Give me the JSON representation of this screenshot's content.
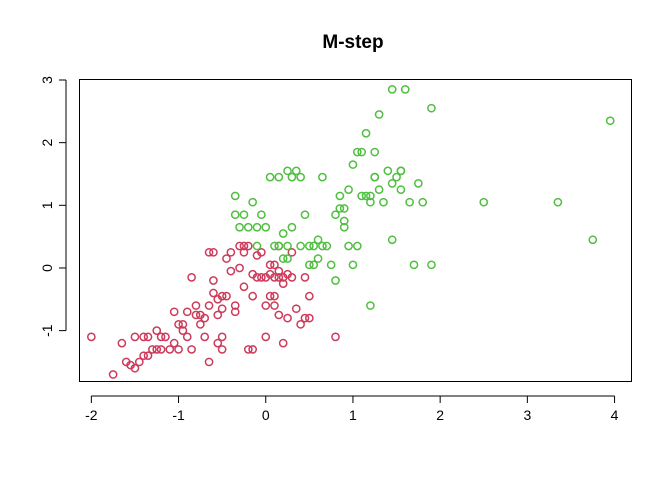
{
  "chart_data": {
    "type": "scatter",
    "title": "M-step",
    "xlabel": "",
    "ylabel": "",
    "xlim": [
      -2.13,
      4.2
    ],
    "ylim": [
      -1.82,
      3.0
    ],
    "x_ticks": [
      -2,
      -1,
      0,
      1,
      2,
      3,
      4
    ],
    "y_ticks": [
      -1,
      0,
      1,
      2,
      3
    ],
    "x_tick_labels": [
      "-2",
      "-1",
      "0",
      "1",
      "2",
      "3",
      "4"
    ],
    "y_tick_labels": [
      "-1",
      "0",
      "1",
      "2",
      "3"
    ],
    "grid": false,
    "legend": "none",
    "series": [
      {
        "color": "#cd3a5a",
        "points": [
          [
            -2.0,
            -1.1
          ],
          [
            -1.75,
            -1.7
          ],
          [
            -1.65,
            -1.2
          ],
          [
            -1.6,
            -1.5
          ],
          [
            -1.55,
            -1.55
          ],
          [
            -1.5,
            -1.1
          ],
          [
            -1.5,
            -1.6
          ],
          [
            -1.45,
            -1.5
          ],
          [
            -1.4,
            -1.1
          ],
          [
            -1.4,
            -1.4
          ],
          [
            -1.35,
            -1.1
          ],
          [
            -1.35,
            -1.4
          ],
          [
            -1.3,
            -1.3
          ],
          [
            -1.25,
            -1.3
          ],
          [
            -1.2,
            -1.3
          ],
          [
            -1.2,
            -1.1
          ],
          [
            -1.15,
            -1.1
          ],
          [
            -1.1,
            -1.3
          ],
          [
            -1.05,
            -0.7
          ],
          [
            -1.0,
            -0.9
          ],
          [
            -1.0,
            -1.3
          ],
          [
            -0.95,
            -0.9
          ],
          [
            -0.9,
            -1.1
          ],
          [
            -0.85,
            -1.3
          ],
          [
            -0.85,
            -0.15
          ],
          [
            -0.8,
            -0.75
          ],
          [
            -0.8,
            -0.6
          ],
          [
            -0.75,
            -0.75
          ],
          [
            -0.7,
            -1.1
          ],
          [
            -0.7,
            -0.8
          ],
          [
            -0.65,
            -1.5
          ],
          [
            -0.65,
            -0.6
          ],
          [
            -0.6,
            -0.4
          ],
          [
            -0.55,
            -0.5
          ],
          [
            -0.55,
            -1.2
          ],
          [
            -0.5,
            -1.3
          ],
          [
            -0.5,
            -1.1
          ],
          [
            -0.5,
            -0.65
          ],
          [
            -0.5,
            -0.45
          ],
          [
            -0.45,
            -0.45
          ],
          [
            -0.4,
            0.25
          ],
          [
            -0.4,
            -0.05
          ],
          [
            -0.35,
            -0.6
          ],
          [
            -0.3,
            0.0
          ],
          [
            -0.25,
            0.25
          ],
          [
            -0.25,
            -0.3
          ],
          [
            -0.2,
            -1.3
          ],
          [
            -0.15,
            -0.45
          ],
          [
            -0.1,
            0.2
          ],
          [
            -0.05,
            0.25
          ],
          [
            0.0,
            -0.6
          ],
          [
            0.05,
            -0.1
          ],
          [
            0.1,
            0.05
          ],
          [
            0.1,
            -0.45
          ],
          [
            0.15,
            0.35
          ],
          [
            0.2,
            -0.15
          ],
          [
            0.25,
            -0.1
          ],
          [
            -0.6,
            -0.2
          ],
          [
            -0.6,
            0.25
          ],
          [
            -0.55,
            -0.75
          ],
          [
            -0.25,
            0.35
          ],
          [
            -0.2,
            0.35
          ],
          [
            -0.15,
            -0.1
          ],
          [
            -0.1,
            -0.15
          ],
          [
            0.0,
            -1.1
          ],
          [
            0.05,
            -0.45
          ],
          [
            0.1,
            -0.6
          ],
          [
            0.15,
            -0.15
          ],
          [
            0.2,
            -0.25
          ],
          [
            0.25,
            -0.8
          ],
          [
            0.3,
            -0.15
          ],
          [
            0.35,
            -0.65
          ],
          [
            0.4,
            -0.9
          ],
          [
            0.45,
            -0.8
          ],
          [
            0.5,
            -0.8
          ],
          [
            0.8,
            -1.1
          ],
          [
            0.5,
            -0.45
          ],
          [
            0.3,
            0.25
          ],
          [
            -0.3,
            0.35
          ],
          [
            0.15,
            -0.75
          ],
          [
            -0.9,
            -0.7
          ],
          [
            -0.75,
            -0.9
          ],
          [
            -1.05,
            -1.2
          ],
          [
            -0.65,
            0.25
          ],
          [
            -0.45,
            0.15
          ],
          [
            -0.35,
            -0.7
          ],
          [
            -0.15,
            -1.3
          ],
          [
            0.2,
            -1.2
          ],
          [
            -1.25,
            -1.0
          ],
          [
            -0.95,
            -1.0
          ],
          [
            0.45,
            -0.15
          ],
          [
            0.0,
            -0.15
          ],
          [
            0.05,
            0.05
          ],
          [
            0.1,
            -0.15
          ],
          [
            -0.05,
            -0.15
          ],
          [
            0.15,
            -0.05
          ]
        ]
      },
      {
        "color": "#4fbf3f",
        "points": [
          [
            -0.35,
            1.15
          ],
          [
            -0.35,
            0.85
          ],
          [
            -0.3,
            0.65
          ],
          [
            -0.25,
            0.85
          ],
          [
            -0.2,
            0.65
          ],
          [
            -0.15,
            1.05
          ],
          [
            -0.1,
            0.65
          ],
          [
            -0.05,
            0.85
          ],
          [
            0.0,
            0.65
          ],
          [
            0.05,
            1.45
          ],
          [
            0.15,
            1.45
          ],
          [
            0.15,
            0.35
          ],
          [
            0.2,
            0.15
          ],
          [
            0.25,
            1.55
          ],
          [
            0.25,
            0.35
          ],
          [
            0.3,
            1.45
          ],
          [
            0.3,
            0.65
          ],
          [
            0.35,
            1.55
          ],
          [
            0.4,
            1.45
          ],
          [
            0.4,
            0.35
          ],
          [
            0.45,
            0.85
          ],
          [
            0.5,
            0.35
          ],
          [
            0.5,
            0.05
          ],
          [
            0.55,
            0.35
          ],
          [
            0.6,
            0.45
          ],
          [
            0.65,
            0.35
          ],
          [
            0.65,
            1.45
          ],
          [
            0.7,
            0.35
          ],
          [
            0.75,
            0.05
          ],
          [
            0.8,
            0.85
          ],
          [
            0.85,
            1.15
          ],
          [
            0.85,
            0.95
          ],
          [
            0.9,
            0.95
          ],
          [
            0.9,
            0.75
          ],
          [
            0.95,
            1.25
          ],
          [
            0.95,
            0.35
          ],
          [
            1.0,
            1.65
          ],
          [
            1.05,
            1.85
          ],
          [
            1.05,
            0.35
          ],
          [
            1.1,
            1.15
          ],
          [
            1.1,
            1.85
          ],
          [
            1.15,
            2.15
          ],
          [
            1.2,
            1.05
          ],
          [
            1.2,
            1.15
          ],
          [
            1.25,
            1.45
          ],
          [
            1.25,
            1.85
          ],
          [
            1.3,
            2.45
          ],
          [
            1.35,
            1.05
          ],
          [
            1.4,
            1.55
          ],
          [
            1.45,
            1.35
          ],
          [
            1.5,
            1.45
          ],
          [
            1.55,
            1.25
          ],
          [
            1.55,
            1.55
          ],
          [
            1.65,
            1.05
          ],
          [
            1.7,
            0.05
          ],
          [
            1.75,
            1.35
          ],
          [
            1.8,
            1.05
          ],
          [
            1.45,
            2.85
          ],
          [
            1.6,
            2.85
          ],
          [
            1.9,
            2.55
          ],
          [
            1.9,
            0.05
          ],
          [
            2.5,
            1.05
          ],
          [
            3.35,
            1.05
          ],
          [
            3.75,
            0.45
          ],
          [
            3.95,
            2.35
          ],
          [
            1.45,
            0.45
          ],
          [
            1.2,
            -0.6
          ],
          [
            0.2,
            0.55
          ],
          [
            -0.1,
            0.35
          ],
          [
            0.1,
            0.35
          ],
          [
            0.25,
            0.15
          ],
          [
            0.55,
            0.05
          ],
          [
            0.8,
            -0.2
          ],
          [
            1.0,
            0.05
          ],
          [
            0.6,
            0.15
          ],
          [
            0.9,
            0.65
          ],
          [
            1.15,
            1.15
          ],
          [
            1.25,
            1.45
          ],
          [
            1.3,
            1.25
          ],
          [
            1.55,
            1.55
          ]
        ]
      }
    ]
  }
}
